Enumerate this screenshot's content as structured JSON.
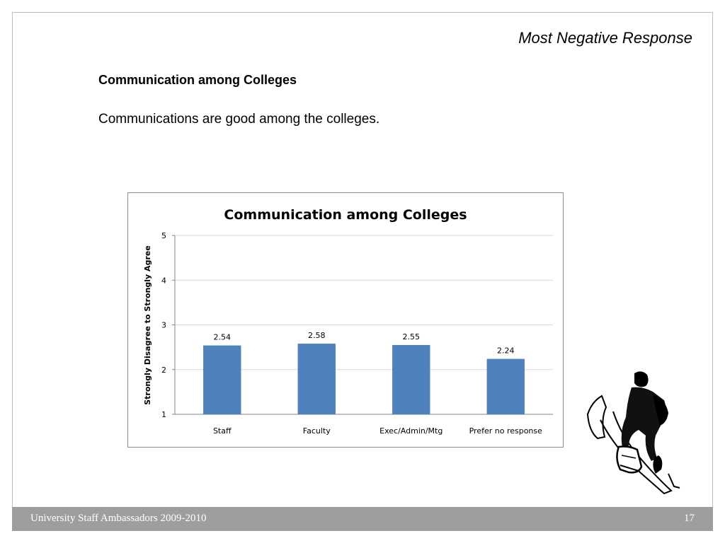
{
  "slide": {
    "corner_title": "Most Negative Response",
    "heading": "Communication among Colleges",
    "statement": "Communications are good among the colleges."
  },
  "footer": {
    "left_text": "University Staff Ambassadors 2009-2010",
    "page_number": "17"
  },
  "decoration": {
    "figure_icon": "hiker-climbing-icon"
  },
  "colors": {
    "bar": "#4f81bd",
    "grid": "#d9d9d9",
    "footer_bg": "#9e9e9e"
  },
  "chart_data": {
    "type": "bar",
    "title": "Communication among Colleges",
    "xlabel": "",
    "ylabel": "Strongly Disagree to Strongly Agree",
    "categories": [
      "Staff",
      "Faculty",
      "Exec/Admin/Mtg",
      "Prefer no response"
    ],
    "values": [
      2.54,
      2.58,
      2.55,
      2.24
    ],
    "data_labels": [
      "2.54",
      "2.58",
      "2.55",
      "2.24"
    ],
    "ylim": [
      1,
      5
    ],
    "yticks": [
      "1",
      "2",
      "3",
      "4",
      "5"
    ],
    "grid": true,
    "legend": "none"
  }
}
